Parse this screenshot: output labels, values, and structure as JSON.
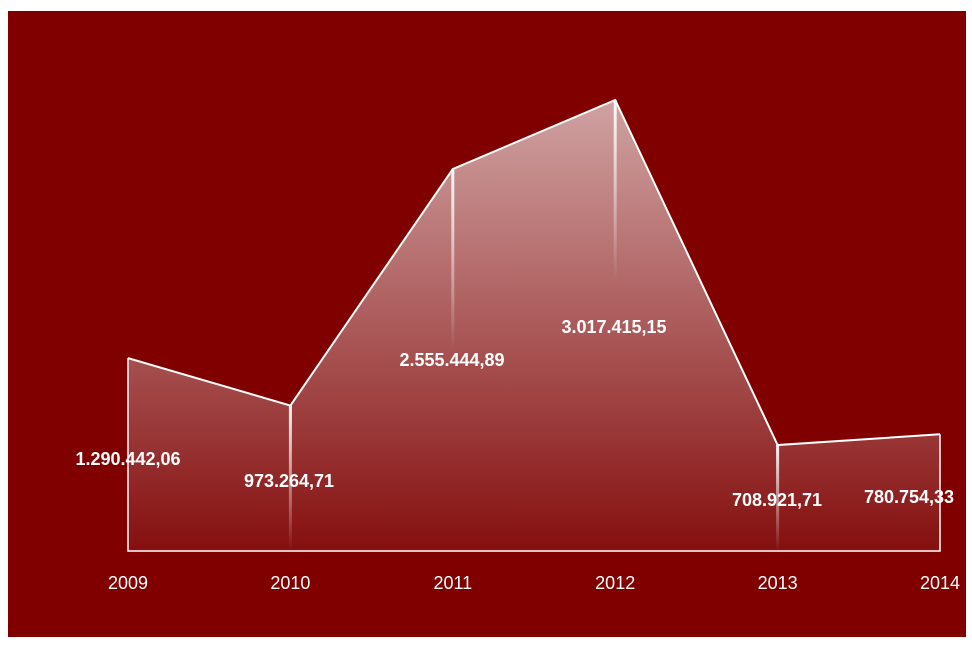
{
  "chart_data": {
    "type": "area",
    "categories": [
      "2009",
      "2010",
      "2011",
      "2012",
      "2013",
      "2014"
    ],
    "values": [
      1290442.06,
      973264.71,
      2555444.89,
      3017415.15,
      708921.71,
      780754.33
    ],
    "value_labels": [
      "1.290.442,06",
      "973.264,71",
      "2.555.444,89",
      "3.017.415,15",
      "708.921,71",
      "780.754,33"
    ],
    "title": "",
    "xlabel": "",
    "ylabel": "",
    "ylim": [
      0,
      3000000
    ],
    "grid": false,
    "legend": "none"
  },
  "colors": {
    "background": "#800000",
    "area_top": "#d4aaaa",
    "area_bottom": "#850f0f",
    "line": "#ffffff",
    "text": "#ffffff"
  }
}
